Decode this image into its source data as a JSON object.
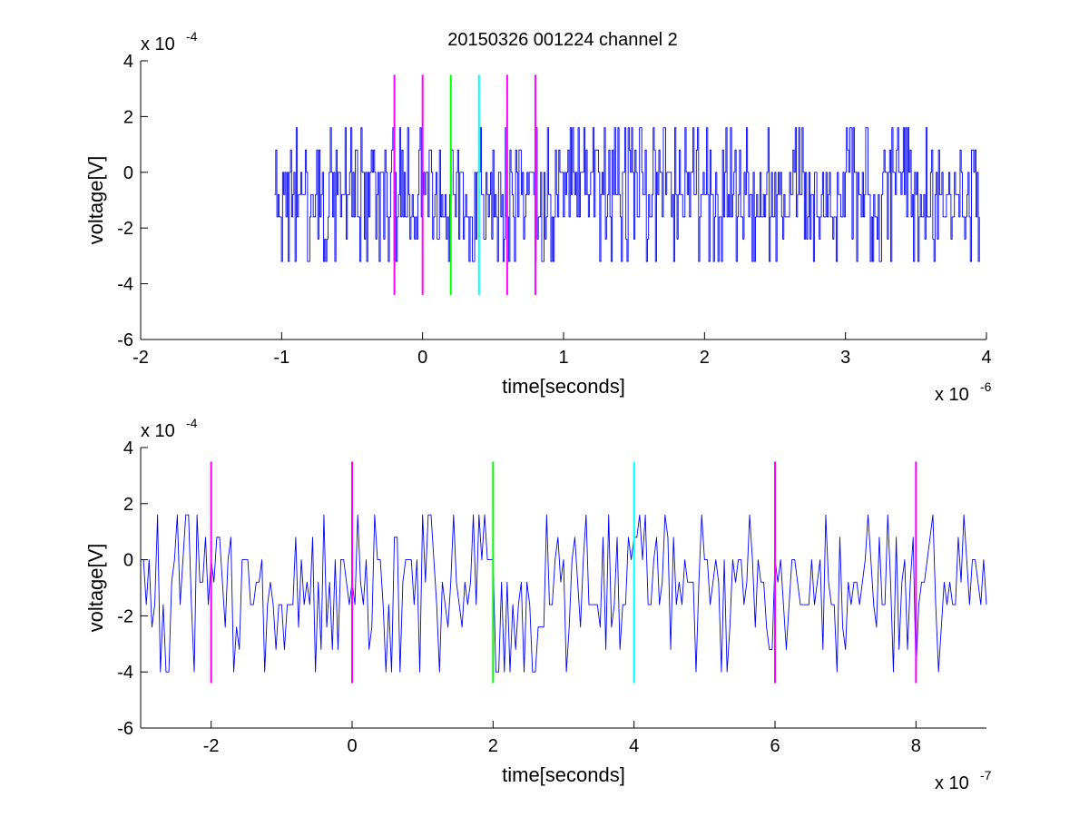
{
  "figure": {
    "title": "20150326 001224 channel 2"
  },
  "chart_data": [
    {
      "type": "line",
      "title": "20150326 001224 channel 2",
      "xlabel": "time[seconds]",
      "ylabel": "voltage[V]",
      "x_exponent_label": "x 10",
      "x_exponent": "-6",
      "y_exponent_label": "x 10",
      "y_exponent": "-4",
      "xlim": [
        -2,
        4
      ],
      "ylim": [
        -6,
        4
      ],
      "xticks": [
        -2,
        -1,
        0,
        1,
        2,
        3,
        4
      ],
      "xtick_labels": [
        "-2",
        "-1",
        "0",
        "1",
        "2",
        "3",
        "4"
      ],
      "yticks": [
        -6,
        -4,
        -2,
        0,
        2,
        4
      ],
      "ytick_labels": [
        "-6",
        "-4",
        "-2",
        "0",
        "2",
        "4"
      ],
      "grid": false,
      "signal_color": "#0000ff",
      "signal_x_range": [
        -1.05,
        3.95
      ],
      "signal_levels": [
        -3.2,
        -2.4,
        -1.6,
        -0.8,
        0,
        0.8,
        1.6
      ],
      "markers": [
        {
          "x": -0.2,
          "y_range": [
            -4.4,
            3.5
          ],
          "color": "#ff00ff"
        },
        {
          "x": 0.0,
          "y_range": [
            -4.4,
            3.5
          ],
          "color": "#ff00ff"
        },
        {
          "x": 0.2,
          "y_range": [
            -4.4,
            3.5
          ],
          "color": "#00ff00"
        },
        {
          "x": 0.4,
          "y_range": [
            -4.4,
            3.5
          ],
          "color": "#00ffff"
        },
        {
          "x": 0.6,
          "y_range": [
            -4.4,
            3.5
          ],
          "color": "#ff00ff"
        },
        {
          "x": 0.8,
          "y_range": [
            -4.4,
            3.5
          ],
          "color": "#ff00ff"
        }
      ]
    },
    {
      "type": "line",
      "title": "",
      "xlabel": "time[seconds]",
      "ylabel": "voltage[V]",
      "x_exponent_label": "x 10",
      "x_exponent": "-7",
      "y_exponent_label": "x 10",
      "y_exponent": "-4",
      "xlim": [
        -3,
        9
      ],
      "ylim": [
        -6,
        4
      ],
      "xticks": [
        -2,
        0,
        2,
        4,
        6,
        8
      ],
      "xtick_labels": [
        "-2",
        "0",
        "2",
        "4",
        "6",
        "8"
      ],
      "yticks": [
        -6,
        -4,
        -2,
        0,
        2,
        4
      ],
      "ytick_labels": [
        "-6",
        "-4",
        "-2",
        "0",
        "2",
        "4"
      ],
      "grid": false,
      "signal_color": "#0000ff",
      "signal_x_range": [
        -3,
        9
      ],
      "signal_levels": [
        -4.0,
        -3.2,
        -2.4,
        -1.6,
        -0.8,
        0,
        0.8,
        1.6
      ],
      "markers": [
        {
          "x": -2,
          "y_range": [
            -4.4,
            3.5
          ],
          "color": "#ff00ff"
        },
        {
          "x": 0,
          "y_range": [
            -4.4,
            3.5
          ],
          "color": "#ff00ff"
        },
        {
          "x": 2,
          "y_range": [
            -4.4,
            3.5
          ],
          "color": "#00ff00"
        },
        {
          "x": 4,
          "y_range": [
            -4.4,
            3.5
          ],
          "color": "#00ffff"
        },
        {
          "x": 6,
          "y_range": [
            -4.4,
            3.5
          ],
          "color": "#ff00ff"
        },
        {
          "x": 8,
          "y_range": [
            -4.4,
            3.5
          ],
          "color": "#ff00ff"
        }
      ]
    }
  ]
}
